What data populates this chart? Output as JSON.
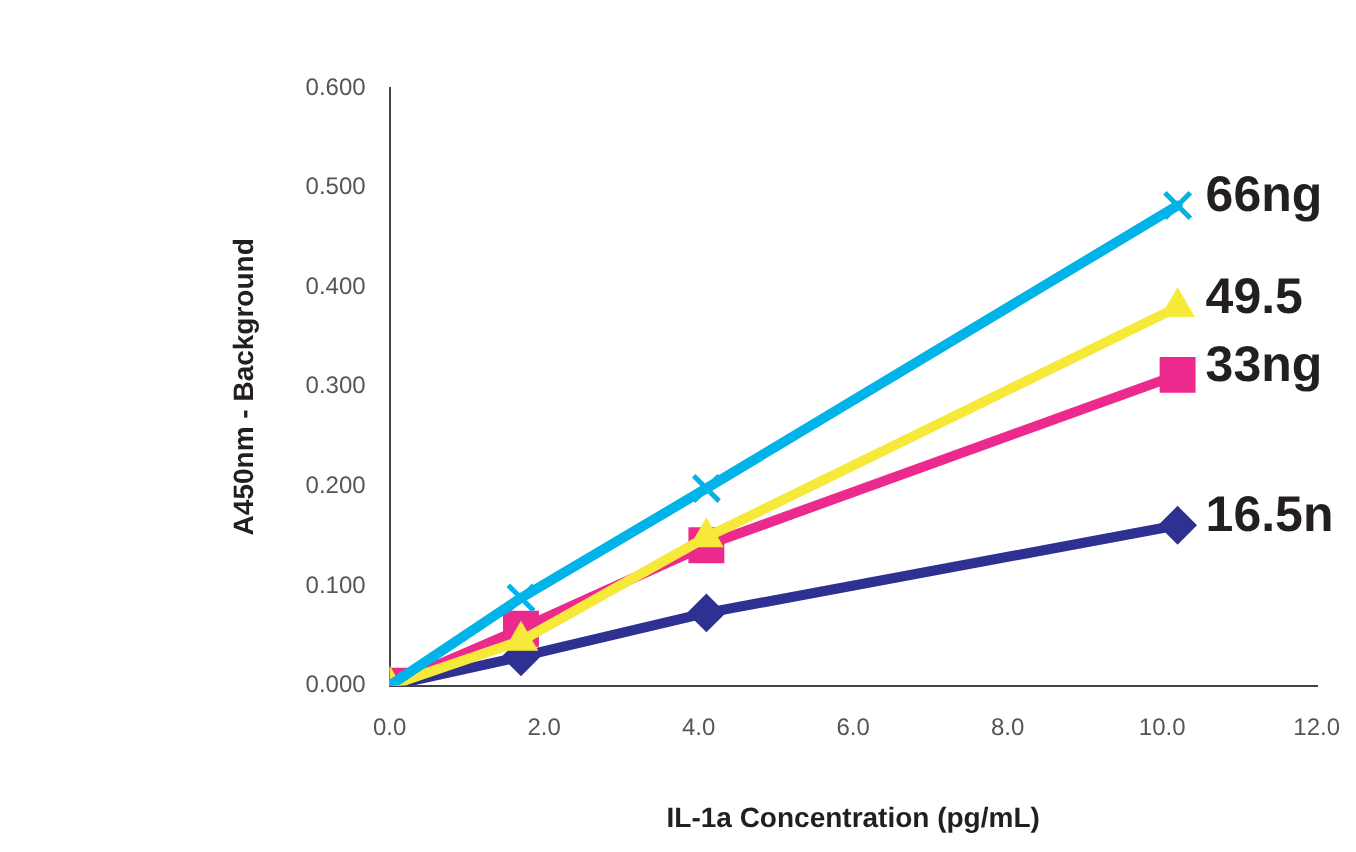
{
  "chart_data": {
    "type": "line",
    "xlabel": "IL-1a Concentration (pg/mL)",
    "ylabel": "A450nm - Background",
    "xlim": [
      0,
      12
    ],
    "ylim": [
      0,
      0.6
    ],
    "xticks": [
      {
        "value": 0,
        "label": "0.0"
      },
      {
        "value": 2,
        "label": "2.0"
      },
      {
        "value": 4,
        "label": "4.0"
      },
      {
        "value": 6,
        "label": "6.0"
      },
      {
        "value": 8,
        "label": "8.0"
      },
      {
        "value": 10,
        "label": "10.0"
      },
      {
        "value": 12,
        "label": "12.0"
      }
    ],
    "yticks": [
      {
        "value": 0,
        "label": "0.000"
      },
      {
        "value": 0.1,
        "label": "0.100"
      },
      {
        "value": 0.2,
        "label": "0.200"
      },
      {
        "value": 0.3,
        "label": "0.300"
      },
      {
        "value": 0.4,
        "label": "0.400"
      },
      {
        "value": 0.5,
        "label": "0.500"
      },
      {
        "value": 0.6,
        "label": "0.600"
      }
    ],
    "grid": false,
    "legend": false,
    "line_style": "solid",
    "x": [
      0,
      1.7,
      4.1,
      10.2
    ],
    "series": [
      {
        "name": "66ng",
        "color": "#00b4ea",
        "marker": "cross",
        "values": [
          0,
          0.088,
          0.198,
          0.482
        ]
      },
      {
        "name": "49.5",
        "color": "#f7e93a",
        "marker": "triangle",
        "values": [
          0,
          0.045,
          0.149,
          0.38
        ]
      },
      {
        "name": "33ng",
        "color": "#ec2a8e",
        "marker": "square",
        "values": [
          0,
          0.057,
          0.141,
          0.312
        ]
      },
      {
        "name": "16.5n",
        "color": "#2e3192",
        "marker": "diamond",
        "values": [
          0,
          0.029,
          0.073,
          0.161
        ]
      }
    ]
  }
}
